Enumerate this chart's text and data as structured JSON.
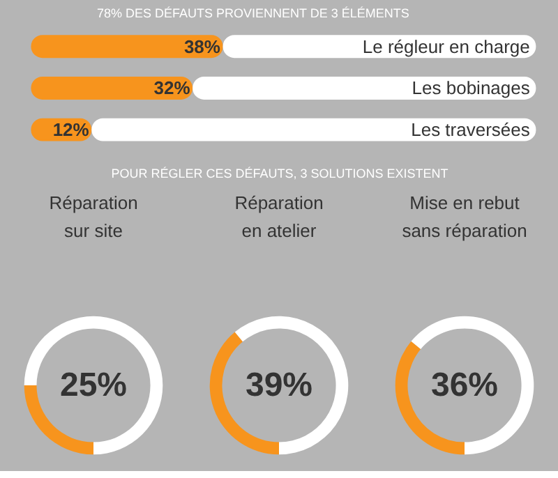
{
  "chart_data": [
    {
      "type": "bar",
      "orientation": "horizontal",
      "stacked": true,
      "title": "78% DES DÉFAUTS PROVIENNENT DE 3 ÉLÉMENTS",
      "categories": [
        "Le régleur en charge",
        "Les bobinages",
        "Les traversées"
      ],
      "xlim": [
        0,
        100
      ],
      "series": [
        {
          "color": "#f7941d",
          "values": [
            38,
            32,
            12
          ],
          "value_labels": [
            "38%",
            "32%",
            "12%"
          ]
        },
        {
          "color": "#ffffff",
          "values": [
            62,
            68,
            88
          ]
        }
      ]
    },
    {
      "type": "donut",
      "subtitle": "POUR RÉGLER CES DÉFAUTS, 3 SOLUTIONS EXISTENT",
      "title": "Réparation\nsur site",
      "categories": [
        null,
        null
      ],
      "values": [
        25,
        75
      ],
      "colors": [
        "#f7941d",
        "#ffffff"
      ],
      "annotations": [
        "25%"
      ]
    },
    {
      "type": "donut",
      "title": "Réparation\nen atelier",
      "categories": [
        null,
        null
      ],
      "values": [
        39,
        61
      ],
      "colors": [
        "#f7941d",
        "#ffffff"
      ],
      "annotations": [
        "39%"
      ]
    },
    {
      "type": "donut",
      "title": "Mise en rebut\nsans réparation",
      "categories": [
        null,
        null
      ],
      "values": [
        36,
        64
      ],
      "colors": [
        "#f7941d",
        "#ffffff"
      ],
      "annotations": [
        "36%"
      ]
    }
  ]
}
